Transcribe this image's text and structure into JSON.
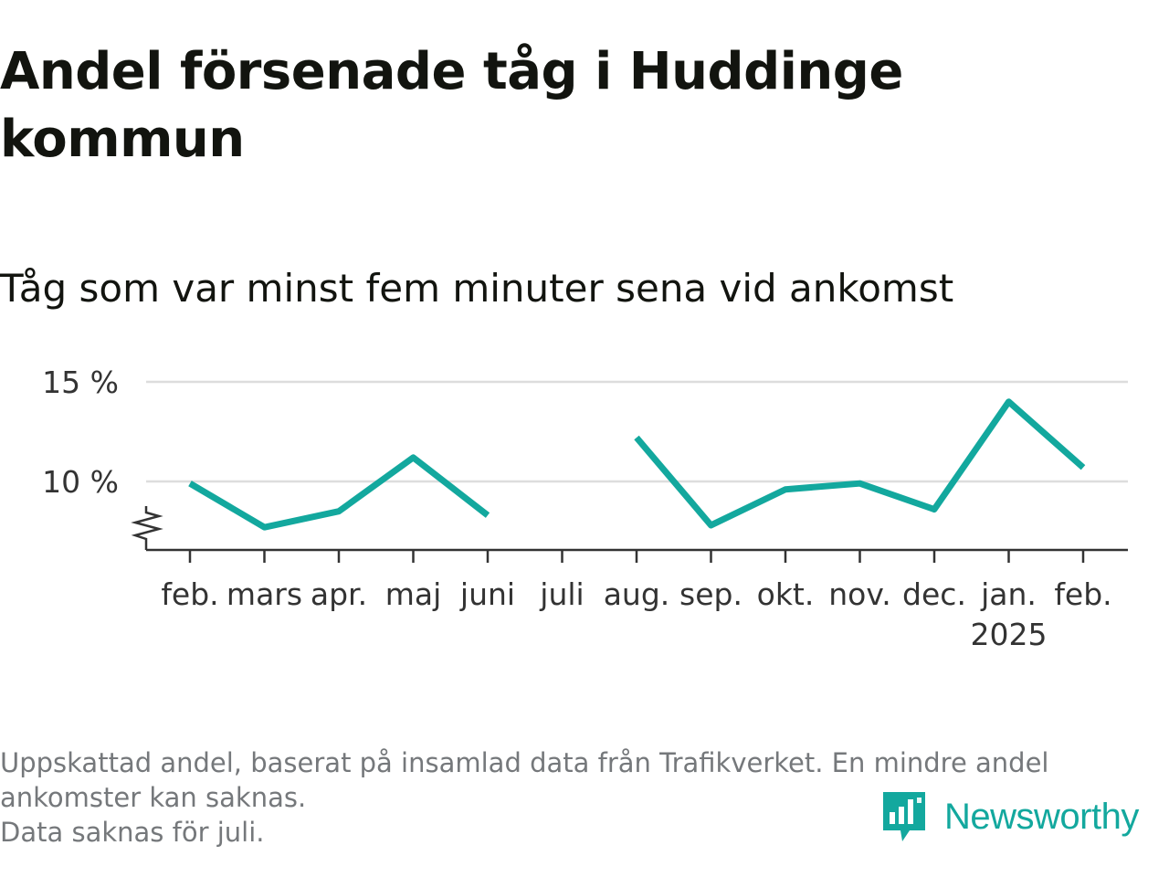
{
  "title": "Andel försenade tåg i Huddinge kommun",
  "subtitle": "Tåg som var minst fem minuter sena vid ankomst",
  "notes": [
    "Uppskattad andel, baserat på insamlad data från Trafikverket. En mindre andel",
    "ankomster kan saknas.",
    "Data saknas för juli."
  ],
  "brand": {
    "name": "Newsworthy",
    "logo_icon": "newsworthy-bar-chart-bubble-icon",
    "color": "#13a89e"
  },
  "colors": {
    "line": "#13a89e",
    "grid": "#dddddd",
    "axis": "#333333"
  },
  "chart_data": {
    "type": "line",
    "categories": [
      "feb.",
      "mars",
      "apr.",
      "maj",
      "juni",
      "juli",
      "aug.",
      "sep.",
      "okt.",
      "nov.",
      "dec.",
      "jan.",
      "feb."
    ],
    "year_labels": [
      {
        "index": 11,
        "label": "2025"
      }
    ],
    "series": [
      {
        "values": [
          9.9,
          7.7,
          8.5,
          11.2,
          8.3,
          null,
          12.2,
          7.8,
          9.6,
          9.9,
          8.6,
          14.0,
          10.7
        ]
      }
    ],
    "y_ticks": [
      {
        "value": 10,
        "label": "10 %"
      },
      {
        "value": 15,
        "label": "15 %"
      }
    ],
    "ylim": [
      6.5,
      15
    ],
    "y_axis_break": true,
    "grid": true,
    "legend": "none",
    "missing": [
      "juli"
    ]
  }
}
